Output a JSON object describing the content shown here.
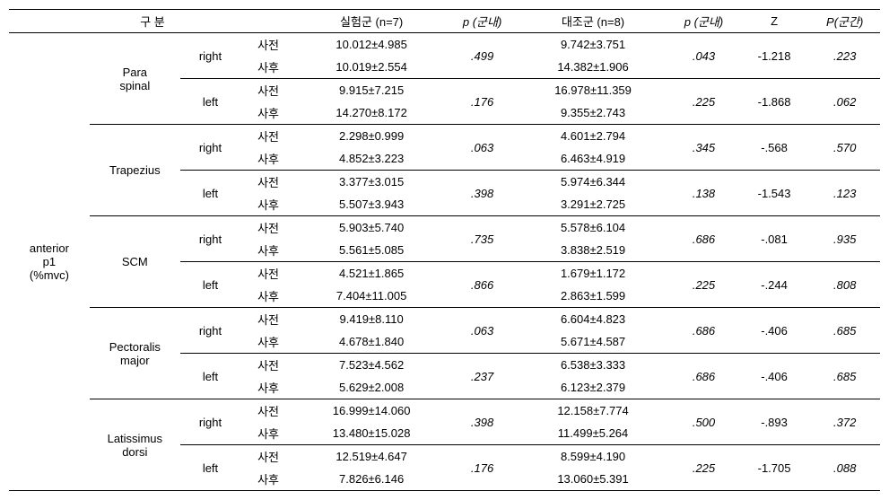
{
  "header": {
    "gubun": "구 분",
    "exp": "실험군 (n=7)",
    "p_in1": "p (군내)",
    "ctrl": "대조군 (n=8)",
    "p_in2": "p (군내)",
    "z": "Z",
    "p_between": "P(군간)"
  },
  "row_label": {
    "line1": "anterior",
    "line2": "p1",
    "line3": "(%mvc)"
  },
  "sides": {
    "right": "right",
    "left": "left"
  },
  "phases": {
    "pre": "사전",
    "post": "사후"
  },
  "muscles": [
    {
      "name_line1": "Para",
      "name_line2": "spinal",
      "right": {
        "pre_exp": "10.012±4.985",
        "post_exp": "10.019±2.554",
        "p_in_exp": ".499",
        "pre_ctrl": "9.742±3.751",
        "post_ctrl": "14.382±1.906",
        "p_in_ctrl": ".043",
        "z": "-1.218",
        "p_between": ".223"
      },
      "left": {
        "pre_exp": "9.915±7.215",
        "post_exp": "14.270±8.172",
        "p_in_exp": ".176",
        "pre_ctrl": "16.978±11.359",
        "post_ctrl": "9.355±2.743",
        "p_in_ctrl": ".225",
        "z": "-1.868",
        "p_between": ".062"
      }
    },
    {
      "name_line1": "Trapezius",
      "name_line2": "",
      "right": {
        "pre_exp": "2.298±0.999",
        "post_exp": "4.852±3.223",
        "p_in_exp": ".063",
        "pre_ctrl": "4.601±2.794",
        "post_ctrl": "6.463±4.919",
        "p_in_ctrl": ".345",
        "z": "-.568",
        "p_between": ".570"
      },
      "left": {
        "pre_exp": "3.377±3.015",
        "post_exp": "5.507±3.943",
        "p_in_exp": ".398",
        "pre_ctrl": "5.974±6.344",
        "post_ctrl": "3.291±2.725",
        "p_in_ctrl": ".138",
        "z": "-1.543",
        "p_between": ".123"
      }
    },
    {
      "name_line1": "SCM",
      "name_line2": "",
      "right": {
        "pre_exp": "5.903±5.740",
        "post_exp": "5.561±5.085",
        "p_in_exp": ".735",
        "pre_ctrl": "5.578±6.104",
        "post_ctrl": "3.838±2.519",
        "p_in_ctrl": ".686",
        "z": "-.081",
        "p_between": ".935"
      },
      "left": {
        "pre_exp": "4.521±1.865",
        "post_exp": "7.404±11.005",
        "p_in_exp": ".866",
        "pre_ctrl": "1.679±1.172",
        "post_ctrl": "2.863±1.599",
        "p_in_ctrl": ".225",
        "z": "-.244",
        "p_between": ".808"
      }
    },
    {
      "name_line1": "Pectoralis",
      "name_line2": "major",
      "right": {
        "pre_exp": "9.419±8.110",
        "post_exp": "4.678±1.840",
        "p_in_exp": ".063",
        "pre_ctrl": "6.604±4.823",
        "post_ctrl": "5.671±4.587",
        "p_in_ctrl": ".686",
        "z": "-.406",
        "p_between": ".685"
      },
      "left": {
        "pre_exp": "7.523±4.562",
        "post_exp": "5.629±2.008",
        "p_in_exp": ".237",
        "pre_ctrl": "6.538±3.333",
        "post_ctrl": "6.123±2.379",
        "p_in_ctrl": ".686",
        "z": "-.406",
        "p_between": ".685"
      }
    },
    {
      "name_line1": "Latissimus",
      "name_line2": "dorsi",
      "right": {
        "pre_exp": "16.999±14.060",
        "post_exp": "13.480±15.028",
        "p_in_exp": ".398",
        "pre_ctrl": "12.158±7.774",
        "post_ctrl": "11.499±5.264",
        "p_in_ctrl": ".500",
        "z": "-.893",
        "p_between": ".372"
      },
      "left": {
        "pre_exp": "12.519±4.647",
        "post_exp": "7.826±6.146",
        "p_in_exp": ".176",
        "pre_ctrl": "8.599±4.190",
        "post_ctrl": "13.060±5.391",
        "p_in_ctrl": ".225",
        "z": "-1.705",
        "p_between": ".088"
      }
    }
  ]
}
